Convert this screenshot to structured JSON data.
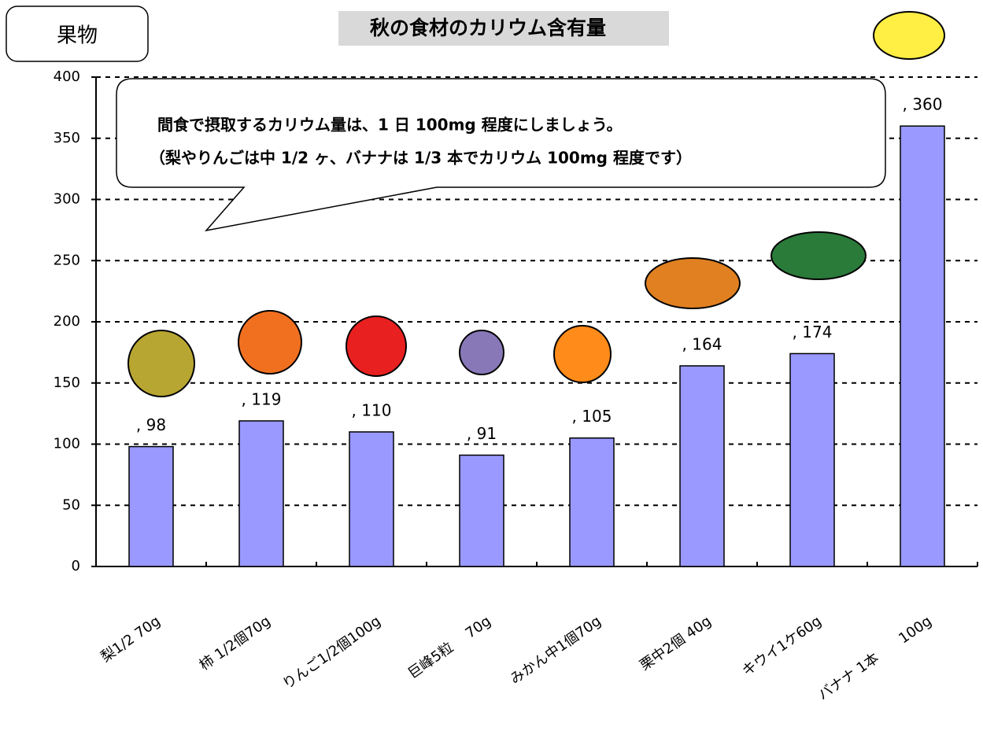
{
  "chart_data": {
    "type": "bar",
    "title": "秋の食材のカリウム含有量",
    "label": "果物",
    "annotation": [
      "間食で摂取するカリウム量は、1 日 100mg 程度にしましょう。",
      "（梨やりんごは中 1/2 ヶ、バナナは 1/3 本でカリウム 100mg 程度です）"
    ],
    "categories": [
      "梨1/2 70g",
      "柿 1/2個70g",
      "りんご1/2個100g",
      "巨峰5粒　 70g",
      "みかん中1個70g",
      "栗中2個 40g",
      "キウイ1ケ60g",
      "バナナ 1本　　100g"
    ],
    "values": [
      98,
      119,
      110,
      91,
      105,
      164,
      174,
      360
    ],
    "value_labels": [
      ", 98",
      ", 119",
      ", 110",
      ", 91",
      ", 105",
      ", 164",
      ", 174",
      ", 360"
    ],
    "color": "#9999ff",
    "ylim": [
      0,
      400
    ],
    "yticks": [
      0,
      50,
      100,
      150,
      200,
      250,
      300,
      350,
      400
    ],
    "grid": true
  }
}
